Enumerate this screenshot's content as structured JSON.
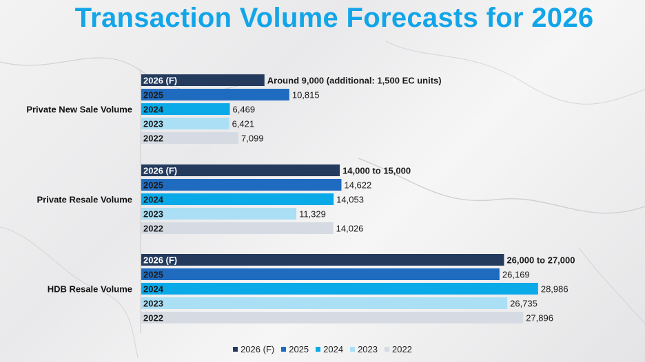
{
  "title": "Transaction Volume Forecasts for 2026",
  "chart_data": {
    "type": "bar",
    "orientation": "horizontal",
    "title": "Transaction Volume Forecasts for 2026",
    "xlim": [
      0,
      30000
    ],
    "categories": [
      "Private New Sale Volume",
      "Private Resale Volume",
      "HDB Resale Volume"
    ],
    "series": [
      {
        "name": "2026 (F)",
        "color": "#243b5e",
        "values": [
          9000,
          14500,
          26500
        ],
        "labels": [
          "Around 9,000 (additional: 1,500 EC units)",
          "14,000 to 15,000",
          "26,000 to 27,000"
        ],
        "label_bold": true
      },
      {
        "name": "2025",
        "color": "#1f6bbf",
        "values": [
          10815,
          14622,
          26169
        ],
        "labels": [
          "10,815",
          "14,622",
          "26,169"
        ]
      },
      {
        "name": "2024",
        "color": "#0aaae8",
        "values": [
          6469,
          14053,
          28986
        ],
        "labels": [
          "6,469",
          "14,053",
          "28,986"
        ]
      },
      {
        "name": "2023",
        "color": "#aadff5",
        "values": [
          6421,
          11329,
          26735
        ],
        "labels": [
          "6,421",
          "11,329",
          "26,735"
        ]
      },
      {
        "name": "2022",
        "color": "#d6dbe3",
        "values": [
          7099,
          14026,
          27896
        ],
        "labels": [
          "7,099",
          "14,026",
          "27,896"
        ]
      }
    ],
    "legend_position": "bottom-center",
    "grid": false
  }
}
